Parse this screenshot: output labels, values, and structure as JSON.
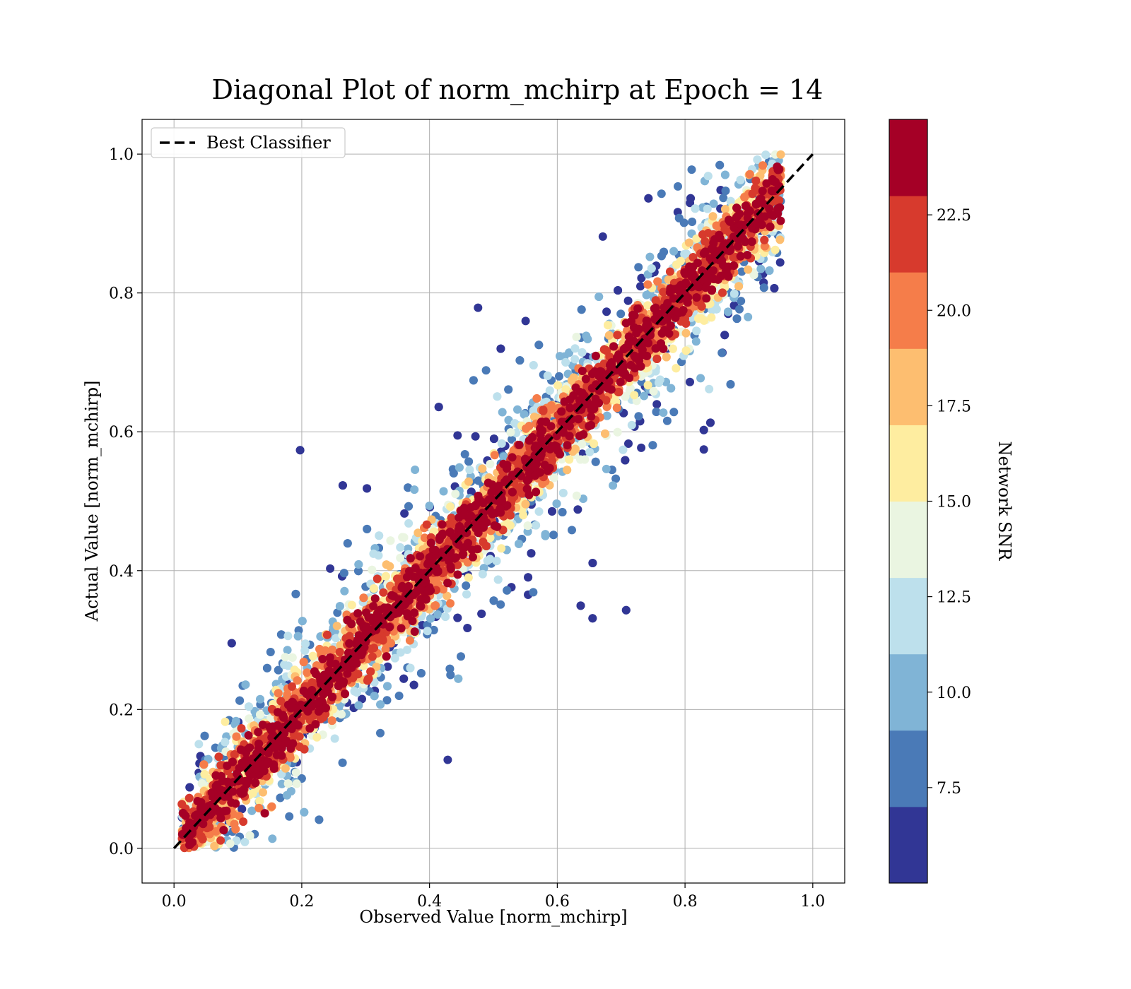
{
  "chart_data": {
    "type": "scatter",
    "title": "Diagonal Plot of norm_mchirp at Epoch = 14",
    "xlabel": "Observed Value [norm_mchirp]",
    "ylabel": "Actual Value [norm_mchirp]",
    "xlim": [
      -0.05,
      1.05
    ],
    "ylim": [
      -0.05,
      1.05
    ],
    "x_ticks": [
      "0.0",
      "0.2",
      "0.4",
      "0.6",
      "0.8",
      "1.0"
    ],
    "y_ticks": [
      "0.0",
      "0.2",
      "0.4",
      "0.6",
      "0.8",
      "1.0"
    ],
    "grid": true,
    "legend": {
      "position": "top-left",
      "entries": [
        "Best Classifier"
      ]
    },
    "reference_line": {
      "style": "dashed",
      "color": "#000000",
      "x": [
        0,
        1
      ],
      "y": [
        0,
        1
      ]
    },
    "point_cloud": {
      "description_kind": "dense scatter along diagonal; high SNR close to diagonal, low SNR spread widely",
      "x_range": [
        0.01,
        0.95
      ],
      "y_range": [
        0.0,
        1.0
      ]
    },
    "colorbar": {
      "label": "Network SNR",
      "range": [
        5.0,
        25.0
      ],
      "tick_values": [
        7.5,
        10.0,
        12.5,
        15.0,
        17.5,
        20.0,
        22.5
      ],
      "tick_labels": [
        "7.5",
        "10.0",
        "12.5",
        "15.0",
        "17.5",
        "20.0",
        "22.5"
      ],
      "colors": [
        "#313695",
        "#4a7ab7",
        "#80b4d6",
        "#bde0ec",
        "#eaf5e1",
        "#feeda0",
        "#fdbe70",
        "#f57d4a",
        "#d73a2d",
        "#a50026"
      ]
    }
  }
}
